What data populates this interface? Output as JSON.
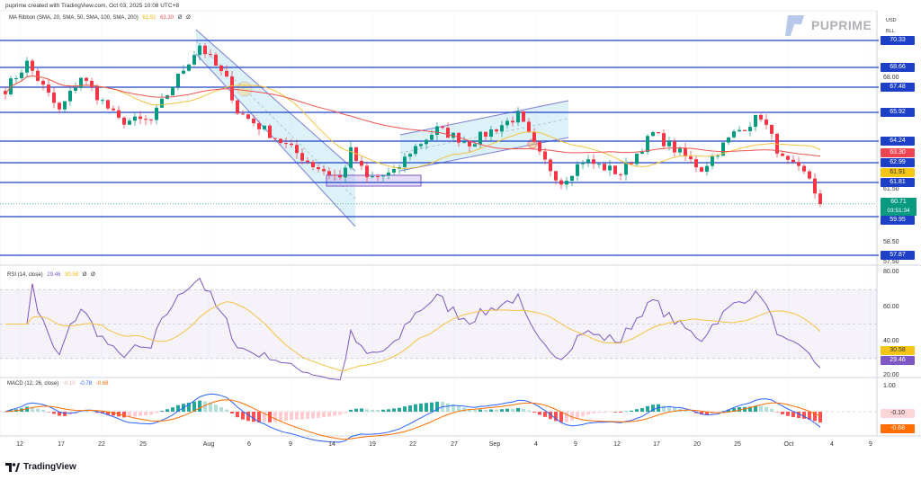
{
  "header": {
    "credit": "puprime created with TradingView.com, Oct 03, 2025 10:08 UTC+8"
  },
  "brand": {
    "logo_text": "PUPRIME",
    "footer": "TradingView"
  },
  "currency": {
    "line1": "USD",
    "line2": "BLL"
  },
  "legends": {
    "ma": {
      "label": "MA Ribbon (SMA, 20, SMA, 50, SMA, 100, SMA, 200)",
      "v1": "61.91",
      "v2": "63.30",
      "v3": "Ø",
      "v4": "Ø"
    },
    "rsi": {
      "label": "RSI (14, close)",
      "v1": "29.46",
      "v2": "30.58",
      "v3": "Ø",
      "v4": "Ø"
    },
    "macd": {
      "label": "MACD (12, 26, close)",
      "v1": "-0.10",
      "v2": "-0.78",
      "v3": "-0.68"
    }
  },
  "colors": {
    "level": "#1e40c8",
    "up": "#089981",
    "down": "#f23645",
    "ma20": "#f5c242",
    "ma50": "#ef5350",
    "rsi": "#7e57c2",
    "macd": "#2962ff",
    "signal": "#ff6d00"
  },
  "price_levels": [
    "70.33",
    "68.66",
    "67.48",
    "65.92",
    "64.24",
    "62.99",
    "61.81",
    "59.95",
    "57.87"
  ],
  "price_axis": [
    "68.00",
    "61.50",
    "58.50",
    "57.50"
  ],
  "price_tags": {
    "ma50": "63.30",
    "ma20": "61.91",
    "last": "60.71",
    "countdown": "03:51:34"
  },
  "rsi_axis": [
    "80.00",
    "60.00",
    "40.00",
    "20.00"
  ],
  "rsi_tags": {
    "ma": "30.58",
    "rsi": "29.46"
  },
  "macd_axis": [
    "1.00"
  ],
  "macd_tags": {
    "hist": "-0.10",
    "signal": "-0.68"
  },
  "time_axis": [
    "12",
    "17",
    "22",
    "25",
    "Aug",
    "6",
    "9",
    "14",
    "19",
    "22",
    "27",
    "Sep",
    "4",
    "9",
    "12",
    "17",
    "20",
    "25",
    "Oct",
    "4",
    "9"
  ],
  "price_keypoints": [
    [
      0,
      67.46
    ],
    [
      4,
      69.0
    ],
    [
      10,
      66.16
    ],
    [
      14,
      68.2
    ],
    [
      21,
      65.6
    ],
    [
      27,
      65.6
    ],
    [
      31,
      67.7
    ],
    [
      36,
      70.07
    ],
    [
      41,
      67.98
    ],
    [
      43,
      66.16
    ],
    [
      49,
      64.85
    ],
    [
      57,
      63.0
    ],
    [
      62,
      62.2
    ],
    [
      64,
      63.8
    ],
    [
      67,
      62.2
    ],
    [
      72,
      62.5
    ],
    [
      75,
      63.8
    ],
    [
      80,
      65.1
    ],
    [
      86,
      64.3
    ],
    [
      95,
      65.9
    ],
    [
      99,
      63.55
    ],
    [
      103,
      62.0
    ],
    [
      107,
      63.3
    ],
    [
      114,
      62.5
    ],
    [
      120,
      64.85
    ],
    [
      129,
      62.77
    ],
    [
      135,
      64.85
    ],
    [
      140,
      65.9
    ],
    [
      144,
      63.3
    ],
    [
      149,
      62.25
    ],
    [
      151,
      60.7
    ]
  ]
}
